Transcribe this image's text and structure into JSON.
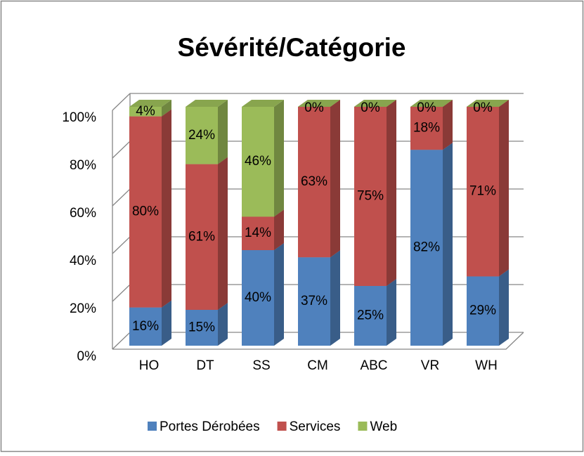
{
  "chart_data": {
    "type": "bar",
    "stacked": true,
    "title": "Sévérité/Catégorie",
    "categories": [
      "HO",
      "DT",
      "SS",
      "CM",
      "ABC",
      "VR",
      "WH"
    ],
    "series": [
      {
        "name": "Portes Dérobées",
        "color": "#4f81bd",
        "values": [
          16,
          15,
          40,
          37,
          25,
          82,
          29
        ],
        "value_labels": [
          "16%",
          "15%",
          "40%",
          "37%",
          "25%",
          "82%",
          "29%"
        ]
      },
      {
        "name": "Services",
        "color": "#c0504d",
        "values": [
          80,
          61,
          14,
          63,
          75,
          18,
          71
        ],
        "value_labels": [
          "80%",
          "61%",
          "14%",
          "63%",
          "75%",
          "18%",
          "71%"
        ]
      },
      {
        "name": "Web",
        "color": "#9bbb59",
        "values": [
          4,
          24,
          46,
          0,
          0,
          0,
          0
        ],
        "value_labels": [
          "4%",
          "24%",
          "46%",
          "0%",
          "0%",
          "0%",
          "0%"
        ]
      }
    ],
    "ylim": [
      0,
      100
    ],
    "yticks": [
      {
        "value": 0,
        "label": "0%"
      },
      {
        "value": 20,
        "label": "20%"
      },
      {
        "value": 40,
        "label": "40%"
      },
      {
        "value": 60,
        "label": "60%"
      },
      {
        "value": 80,
        "label": "80%"
      },
      {
        "value": 100,
        "label": "100%"
      }
    ],
    "grid": true,
    "legend": "bottom"
  }
}
